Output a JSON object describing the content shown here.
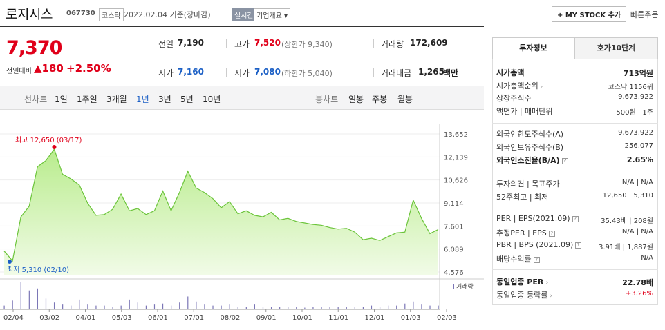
{
  "header": {
    "name": "로지시스",
    "code": "067730",
    "market": "코스닥",
    "date_text": "2022.02.04 기준(장마감)",
    "realtime": "실시간",
    "overview": "기업개요 ▾",
    "mystock": "+ MY STOCK 추가",
    "quick_order": "빠른주문"
  },
  "quote": {
    "price": "7,370",
    "change_label": "전일대비",
    "change": "▲180",
    "change_pct": "+2.50%",
    "prev_label": "전일",
    "prev": "7,190",
    "high_label": "고가",
    "high": "7,520",
    "upper_limit": "(상한가 9,340)",
    "volume_label": "거래량",
    "volume": "172,609",
    "open_label": "시가",
    "open": "7,160",
    "low_label": "저가",
    "low": "7,080",
    "lower_limit": "(하한가 5,040)",
    "amount_label": "거래대금",
    "amount": "1,265",
    "amount_unit": "백만"
  },
  "ranges": {
    "line_label": "선차트",
    "items": [
      "1일",
      "1주일",
      "3개월",
      "1년",
      "3년",
      "5년",
      "10년"
    ],
    "selected": "1년",
    "candle_label": "봉차트",
    "candle_items": [
      "일봉",
      "주봉",
      "월봉"
    ]
  },
  "chart_data": {
    "type": "area",
    "y_ticks": [
      "13,652",
      "12,139",
      "10,626",
      "9,114",
      "7,601",
      "6,089",
      "4,576"
    ],
    "ylim": [
      4576,
      13652
    ],
    "x_ticks": [
      "02/04",
      "03/02",
      "04/01",
      "05/03",
      "06/01",
      "07/01",
      "08/02",
      "09/01",
      "10/01",
      "11/01",
      "12/01",
      "01/03",
      "02/03"
    ],
    "high_label": "최고 12,650 (03/17)",
    "low_label": "최저 5,310 (02/10)",
    "volume_label": "거래량",
    "x": [
      "02/04",
      "02/10",
      "02/17",
      "02/24",
      "03/02",
      "03/09",
      "03/17",
      "03/24",
      "03/31",
      "04/07",
      "04/14",
      "04/21",
      "04/28",
      "05/06",
      "05/13",
      "05/20",
      "05/27",
      "06/03",
      "06/10",
      "06/17",
      "06/24",
      "07/01",
      "07/08",
      "07/15",
      "07/22",
      "07/29",
      "08/05",
      "08/12",
      "08/19",
      "08/26",
      "09/02",
      "09/09",
      "09/16",
      "09/23",
      "09/30",
      "10/07",
      "10/14",
      "10/21",
      "10/28",
      "11/04",
      "11/11",
      "11/18",
      "11/25",
      "12/02",
      "12/09",
      "12/16",
      "12/23",
      "12/30",
      "01/06",
      "01/13",
      "01/20",
      "01/27",
      "02/03"
    ],
    "values": [
      5950,
      5310,
      8200,
      8900,
      11500,
      11900,
      12650,
      11000,
      10700,
      10300,
      9100,
      8300,
      8350,
      8700,
      9700,
      8600,
      8750,
      8350,
      8600,
      9900,
      8600,
      9800,
      11200,
      10100,
      9800,
      9400,
      8800,
      9200,
      8400,
      8600,
      8300,
      8200,
      8500,
      8000,
      8100,
      7900,
      7800,
      7700,
      7650,
      7500,
      7400,
      7450,
      7200,
      6700,
      6800,
      6650,
      6900,
      7150,
      7200,
      9300,
      8100,
      7100,
      7370
    ],
    "volumes": [
      3,
      8,
      26,
      18,
      20,
      10,
      6,
      4,
      3,
      9,
      4,
      3,
      3,
      2,
      3,
      9,
      6,
      3,
      4,
      5,
      3,
      6,
      12,
      7,
      4,
      3,
      3,
      4,
      2,
      2,
      4,
      2,
      2,
      2,
      2,
      2,
      1,
      2,
      2,
      2,
      2,
      2,
      2,
      2,
      3,
      2,
      3,
      3,
      5,
      7,
      4,
      3,
      3
    ]
  },
  "panel": {
    "tab_invest": "투자정보",
    "tab_order": "호가10단계",
    "rows1": [
      {
        "label": "시가총액",
        "value": "713억원",
        "bold": true
      },
      {
        "label": "시가총액순위",
        "value": "코스닥 1156위",
        "arrow": true
      },
      {
        "label": "상장주식수",
        "value": "9,673,922"
      },
      {
        "label": "액면가 | 매매단위",
        "value": "500원 | 1주"
      }
    ],
    "rows2": [
      {
        "label": "외국인한도주식수(A)",
        "value": "9,673,922"
      },
      {
        "label": "외국인보유주식수(B)",
        "value": "256,077"
      },
      {
        "label": "외국인소진율(B/A)",
        "value": "2.65%",
        "bold": true,
        "q": true
      }
    ],
    "rows3": [
      {
        "label": "투자의견 | 목표주가",
        "value": "N/A | N/A"
      },
      {
        "label": "52주최고 | 최저",
        "value": "12,650 | 5,310"
      }
    ],
    "rows4": [
      {
        "label": "PER | EPS(2021.09)",
        "value": "35.43배 | 208원",
        "q": true
      },
      {
        "label": "추정PER | EPS",
        "value": "N/A | N/A",
        "q": true
      },
      {
        "label": "PBR | BPS (2021.09)",
        "value": "3.91배 | 1,887원",
        "q": true
      },
      {
        "label": "배당수익률",
        "value": "N/A",
        "q": true
      }
    ],
    "rows5": [
      {
        "label": "동일업종 PER",
        "value": "22.78배",
        "bold": true,
        "arrow": true
      },
      {
        "label": "동일업종 등락률",
        "value": "+3.26%",
        "red": true,
        "arrow": true
      }
    ]
  }
}
